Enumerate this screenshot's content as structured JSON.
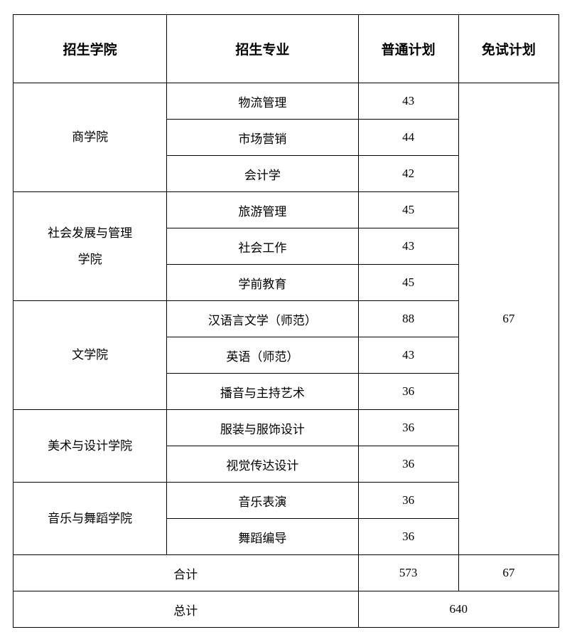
{
  "headers": {
    "col1": "招生学院",
    "col2": "招生专业",
    "col3": "普通计划",
    "col4": "免试计划"
  },
  "departments": [
    {
      "name": "商学院",
      "majors": [
        {
          "name": "物流管理",
          "regular": "43"
        },
        {
          "name": "市场营销",
          "regular": "44"
        },
        {
          "name": "会计学",
          "regular": "42"
        }
      ]
    },
    {
      "name": "社会发展与管理学院",
      "majors": [
        {
          "name": "旅游管理",
          "regular": "45"
        },
        {
          "name": "社会工作",
          "regular": "43"
        },
        {
          "name": "学前教育",
          "regular": "45"
        }
      ]
    },
    {
      "name": "文学院",
      "majors": [
        {
          "name": "汉语言文学（师范）",
          "regular": "88"
        },
        {
          "name": "英语（师范）",
          "regular": "43"
        },
        {
          "name": "播音与主持艺术",
          "regular": "36"
        }
      ]
    },
    {
      "name": "美术与设计学院",
      "majors": [
        {
          "name": "服装与服饰设计",
          "regular": "36"
        },
        {
          "name": "视觉传达设计",
          "regular": "36"
        }
      ]
    },
    {
      "name": "音乐与舞蹈学院",
      "majors": [
        {
          "name": "音乐表演",
          "regular": "36"
        },
        {
          "name": "舞蹈编导",
          "regular": "36"
        }
      ]
    }
  ],
  "exemption": "67",
  "subtotal": {
    "label": "合计",
    "regular": "573",
    "exemption": "67"
  },
  "total": {
    "label": "总计",
    "value": "640"
  }
}
